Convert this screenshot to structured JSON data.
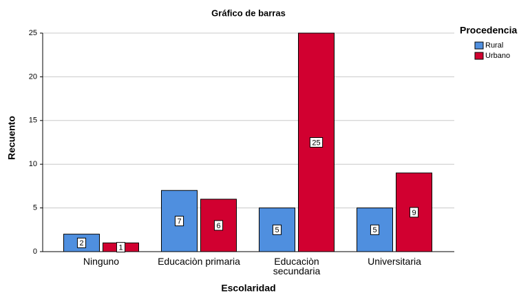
{
  "chart_data": {
    "type": "bar",
    "title": "Gráfico de barras",
    "x_label": "Escolaridad",
    "y_label": "Recuento",
    "legend_title": "Procedencia",
    "categories": [
      "Ninguno",
      "Educaciòn primaria",
      "Educaciòn secundaria",
      "Universitaria"
    ],
    "series": [
      {
        "name": "Rural",
        "color": "#4f8fdf",
        "values": [
          2,
          7,
          5,
          5
        ]
      },
      {
        "name": "Urbano",
        "color": "#d10030",
        "values": [
          1,
          6,
          25,
          9
        ]
      }
    ],
    "ylim": [
      0,
      25
    ],
    "yticks": [
      0,
      5,
      10,
      15,
      20,
      25
    ],
    "grid": true,
    "legend": "right"
  }
}
